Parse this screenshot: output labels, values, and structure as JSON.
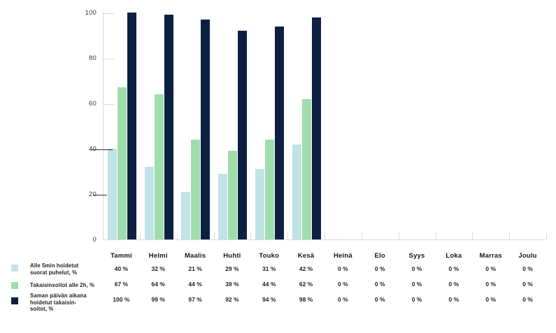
{
  "chart_data": {
    "type": "bar",
    "title": "",
    "categories": [
      "Tammi",
      "Helmi",
      "Maalis",
      "Huhti",
      "Touko",
      "Kesä",
      "Heinä",
      "Elo",
      "Syys",
      "Loka",
      "Marras",
      "Joulu"
    ],
    "series": [
      {
        "name": "Alle 5min hoidetut suorat puhelut, %",
        "color": "#c0e3e7",
        "values": [
          40,
          32,
          21,
          29,
          31,
          42,
          0,
          0,
          0,
          0,
          0,
          0
        ]
      },
      {
        "name": "Takaisinsoitot alle 2h, %",
        "color": "#a0ddac",
        "values": [
          67,
          64,
          44,
          39,
          44,
          62,
          0,
          0,
          0,
          0,
          0,
          0
        ]
      },
      {
        "name": "Saman päivän aikana hoidetut takaisinsoitot, %",
        "color": "#0d2044",
        "values": [
          100,
          99,
          97,
          92,
          94,
          98,
          0,
          0,
          0,
          0,
          0,
          0
        ]
      }
    ],
    "xlabel": "",
    "ylabel": "",
    "ylim": [
      0,
      100
    ],
    "yticks": [
      0,
      20,
      40,
      60,
      80,
      100
    ],
    "grid": "short-y-ticks-only",
    "legend_position": "bottom-left",
    "value_suffix": " %"
  },
  "legend": {
    "items": [
      {
        "lines": [
          "Alle 5min hoidetut",
          "suorat puhelut, %"
        ]
      },
      {
        "lines": [
          "Takaisinsoitot alle 2h, %"
        ]
      },
      {
        "lines": [
          "Saman päivän aikana",
          "hoidetut takaisin-",
          "soitot, %"
        ]
      }
    ]
  },
  "colors": {
    "axis": "#d9d9d9",
    "dark_tick": "#2e2e2e",
    "background": "#ffffff"
  }
}
